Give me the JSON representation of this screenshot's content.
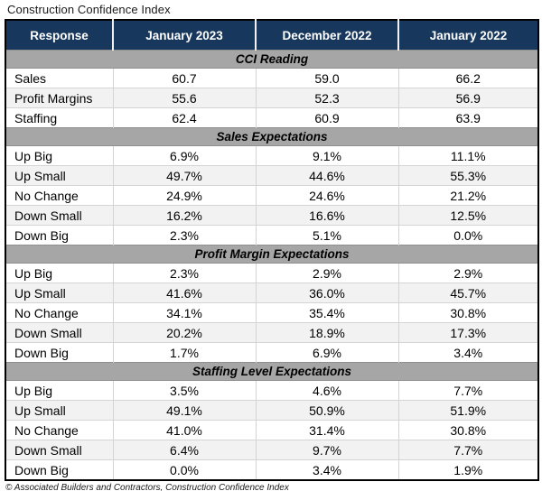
{
  "title": "Construction Confidence Index",
  "footer": "© Associated Builders and Contractors, Construction Confidence Index",
  "colors": {
    "header_bg": "#17375D",
    "header_text": "#FFFFFF",
    "section_bg": "#A6A6A6",
    "row_bg": "#FFFFFF",
    "row_alt_bg": "#F2F2F2",
    "border_outer": "#000000",
    "border_inner": "#D4D4D4",
    "text": "#000000"
  },
  "chart_data": {
    "type": "table",
    "title": "Construction Confidence Index",
    "columns": [
      "Response",
      "January 2023",
      "December 2022",
      "January 2022"
    ],
    "sections": [
      {
        "header": "CCI Reading",
        "rows": [
          {
            "label": "Sales",
            "values": [
              "60.7",
              "59.0",
              "66.2"
            ]
          },
          {
            "label": "Profit Margins",
            "values": [
              "55.6",
              "52.3",
              "56.9"
            ]
          },
          {
            "label": "Staffing",
            "values": [
              "62.4",
              "60.9",
              "63.9"
            ]
          }
        ]
      },
      {
        "header": "Sales Expectations",
        "rows": [
          {
            "label": "Up Big",
            "values": [
              "6.9%",
              "9.1%",
              "11.1%"
            ]
          },
          {
            "label": "Up Small",
            "values": [
              "49.7%",
              "44.6%",
              "55.3%"
            ]
          },
          {
            "label": "No Change",
            "values": [
              "24.9%",
              "24.6%",
              "21.2%"
            ]
          },
          {
            "label": "Down Small",
            "values": [
              "16.2%",
              "16.6%",
              "12.5%"
            ]
          },
          {
            "label": "Down Big",
            "values": [
              "2.3%",
              "5.1%",
              "0.0%"
            ]
          }
        ]
      },
      {
        "header": "Profit Margin Expectations",
        "rows": [
          {
            "label": "Up Big",
            "values": [
              "2.3%",
              "2.9%",
              "2.9%"
            ]
          },
          {
            "label": "Up Small",
            "values": [
              "41.6%",
              "36.0%",
              "45.7%"
            ]
          },
          {
            "label": "No Change",
            "values": [
              "34.1%",
              "35.4%",
              "30.8%"
            ]
          },
          {
            "label": "Down Small",
            "values": [
              "20.2%",
              "18.9%",
              "17.3%"
            ]
          },
          {
            "label": "Down Big",
            "values": [
              "1.7%",
              "6.9%",
              "3.4%"
            ]
          }
        ]
      },
      {
        "header": "Staffing Level Expectations",
        "rows": [
          {
            "label": "Up Big",
            "values": [
              "3.5%",
              "4.6%",
              "7.7%"
            ]
          },
          {
            "label": "Up Small",
            "values": [
              "49.1%",
              "50.9%",
              "51.9%"
            ]
          },
          {
            "label": "No Change",
            "values": [
              "41.0%",
              "31.4%",
              "30.8%"
            ]
          },
          {
            "label": "Down Small",
            "values": [
              "6.4%",
              "9.7%",
              "7.7%"
            ]
          },
          {
            "label": "Down Big",
            "values": [
              "0.0%",
              "3.4%",
              "1.9%"
            ]
          }
        ]
      }
    ]
  }
}
